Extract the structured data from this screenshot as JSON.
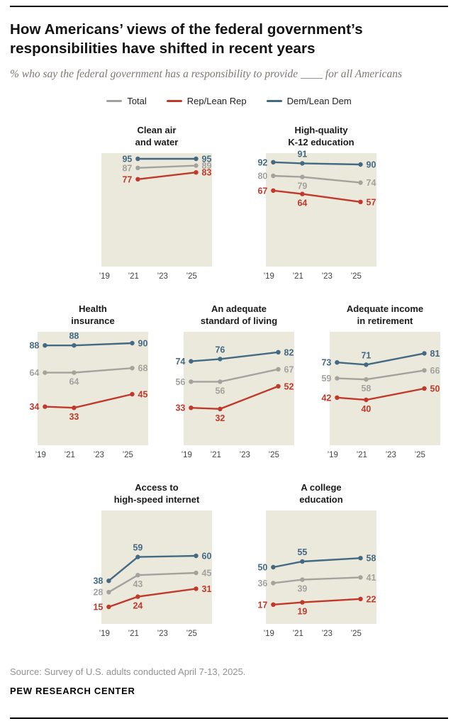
{
  "page": {
    "title": "How Americans’ views of the federal government’s responsibilities have shifted in recent years",
    "subtitle": "% who say the federal government has a responsibility to provide ____ for all Americans",
    "source": "Source: Survey of U.S. adults conducted April 7-13, 2025.",
    "brand": "PEW RESEARCH CENTER"
  },
  "legend": [
    {
      "label": "Total"
    },
    {
      "label": "Rep/Lean Rep"
    },
    {
      "label": "Dem/Lean Dem"
    }
  ],
  "colors": {
    "plot_bg": "#ebe8dc",
    "tick": "#444444",
    "rule": "#000000",
    "series": {
      "Total": "#a3a29d",
      "Rep/Lean Rep": "#c0392b",
      "Dem/Lean Dem": "#436983"
    }
  },
  "chart_data": [
    {
      "type": "line",
      "title": "Clean air\nand water",
      "x": [
        2021.3,
        2025.3
      ],
      "xlim": [
        2018.5,
        2026.3
      ],
      "ylim": [
        0,
        100
      ],
      "xticks": [
        {
          "year": 2019,
          "label": "’19"
        },
        {
          "year": 2021,
          "label": "’21"
        },
        {
          "year": 2023,
          "label": "’23"
        },
        {
          "year": 2025,
          "label": "’25"
        }
      ],
      "series": [
        {
          "name": "Dem/Lean Dem",
          "values": [
            95,
            95
          ],
          "mid_label": "above"
        },
        {
          "name": "Total",
          "values": [
            87,
            89
          ],
          "mid_label": "below"
        },
        {
          "name": "Rep/Lean Rep",
          "values": [
            77,
            83
          ],
          "mid_label": "below"
        }
      ]
    },
    {
      "type": "line",
      "title": "High-quality\nK-12 education",
      "x": [
        2019.3,
        2021.3,
        2025.3
      ],
      "xlim": [
        2018.5,
        2026.3
      ],
      "ylim": [
        0,
        100
      ],
      "xticks": [
        {
          "year": 2019,
          "label": "’19"
        },
        {
          "year": 2021,
          "label": "’21"
        },
        {
          "year": 2023,
          "label": "’23"
        },
        {
          "year": 2025,
          "label": "’25"
        }
      ],
      "series": [
        {
          "name": "Dem/Lean Dem",
          "values": [
            92,
            91,
            90
          ],
          "mid_label": "above"
        },
        {
          "name": "Total",
          "values": [
            80,
            79,
            74
          ],
          "mid_label": "below"
        },
        {
          "name": "Rep/Lean Rep",
          "values": [
            67,
            64,
            57
          ],
          "mid_label": "below"
        }
      ]
    },
    {
      "type": "line",
      "title": "Health\ninsurance",
      "x": [
        2019.3,
        2021.3,
        2025.3
      ],
      "xlim": [
        2018.5,
        2026.3
      ],
      "ylim": [
        0,
        100
      ],
      "xticks": [
        {
          "year": 2019,
          "label": "’19"
        },
        {
          "year": 2021,
          "label": "’21"
        },
        {
          "year": 2023,
          "label": "’23"
        },
        {
          "year": 2025,
          "label": "’25"
        }
      ],
      "series": [
        {
          "name": "Dem/Lean Dem",
          "values": [
            88,
            88,
            90
          ],
          "mid_label": "above"
        },
        {
          "name": "Total",
          "values": [
            64,
            64,
            68
          ],
          "mid_label": "below"
        },
        {
          "name": "Rep/Lean Rep",
          "values": [
            34,
            33,
            45
          ],
          "mid_label": "below"
        }
      ]
    },
    {
      "type": "line",
      "title": "An adequate\nstandard of living",
      "x": [
        2019.3,
        2021.3,
        2025.3
      ],
      "xlim": [
        2018.5,
        2026.3
      ],
      "ylim": [
        0,
        100
      ],
      "xticks": [
        {
          "year": 2019,
          "label": "’19"
        },
        {
          "year": 2021,
          "label": "’21"
        },
        {
          "year": 2023,
          "label": "’23"
        },
        {
          "year": 2025,
          "label": "’25"
        }
      ],
      "series": [
        {
          "name": "Dem/Lean Dem",
          "values": [
            74,
            76,
            82
          ],
          "mid_label": "above"
        },
        {
          "name": "Total",
          "values": [
            56,
            56,
            67
          ],
          "mid_label": "below"
        },
        {
          "name": "Rep/Lean Rep",
          "values": [
            33,
            32,
            52
          ],
          "mid_label": "below"
        }
      ]
    },
    {
      "type": "line",
      "title": "Adequate income\nin retirement",
      "x": [
        2019.3,
        2021.3,
        2025.3
      ],
      "xlim": [
        2018.5,
        2026.3
      ],
      "ylim": [
        0,
        100
      ],
      "xticks": [
        {
          "year": 2019,
          "label": "’19"
        },
        {
          "year": 2021,
          "label": "’21"
        },
        {
          "year": 2023,
          "label": "’23"
        },
        {
          "year": 2025,
          "label": "’25"
        }
      ],
      "series": [
        {
          "name": "Dem/Lean Dem",
          "values": [
            73,
            71,
            81
          ],
          "mid_label": "above"
        },
        {
          "name": "Total",
          "values": [
            59,
            58,
            66
          ],
          "mid_label": "below"
        },
        {
          "name": "Rep/Lean Rep",
          "values": [
            42,
            40,
            50
          ],
          "mid_label": "below"
        }
      ]
    },
    {
      "type": "line",
      "title": "Access to\nhigh-speed internet",
      "x": [
        2019.3,
        2021.3,
        2025.3
      ],
      "xlim": [
        2018.5,
        2026.3
      ],
      "ylim": [
        0,
        100
      ],
      "xticks": [
        {
          "year": 2019,
          "label": "’19"
        },
        {
          "year": 2021,
          "label": "’21"
        },
        {
          "year": 2023,
          "label": "’23"
        },
        {
          "year": 2025,
          "label": "’25"
        }
      ],
      "series": [
        {
          "name": "Dem/Lean Dem",
          "values": [
            38,
            59,
            60
          ],
          "mid_label": "above"
        },
        {
          "name": "Total",
          "values": [
            28,
            43,
            45
          ],
          "mid_label": "below"
        },
        {
          "name": "Rep/Lean Rep",
          "values": [
            15,
            24,
            31
          ],
          "mid_label": "below"
        }
      ]
    },
    {
      "type": "line",
      "title": "A college\neducation",
      "x": [
        2019.3,
        2021.3,
        2025.3
      ],
      "xlim": [
        2018.5,
        2026.3
      ],
      "ylim": [
        0,
        100
      ],
      "xticks": [
        {
          "year": 2019,
          "label": "’19"
        },
        {
          "year": 2021,
          "label": "’21"
        },
        {
          "year": 2023,
          "label": "’23"
        },
        {
          "year": 2025,
          "label": "’25"
        }
      ],
      "series": [
        {
          "name": "Dem/Lean Dem",
          "values": [
            50,
            55,
            58
          ],
          "mid_label": "above"
        },
        {
          "name": "Total",
          "values": [
            36,
            39,
            41
          ],
          "mid_label": "below"
        },
        {
          "name": "Rep/Lean Rep",
          "values": [
            17,
            19,
            22
          ],
          "mid_label": "below"
        }
      ]
    }
  ]
}
